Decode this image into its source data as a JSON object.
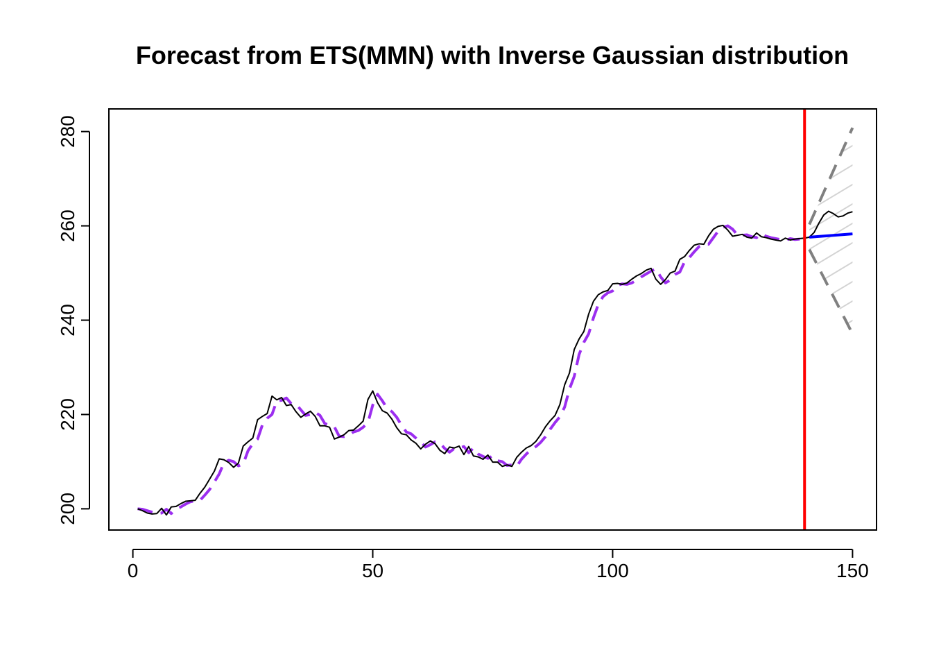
{
  "chart_data": {
    "type": "line",
    "title": "Forecast from ETS(MMN) with Inverse Gaussian distribution",
    "xlabel": "",
    "ylabel": "",
    "xlim": [
      -5,
      155
    ],
    "ylim": [
      195.5,
      284.8
    ],
    "x_ticks": [
      0,
      50,
      100,
      150
    ],
    "y_ticks": [
      200,
      220,
      240,
      260,
      280
    ],
    "grid": false,
    "holdout_start": 140,
    "series": [
      {
        "role": "actuals",
        "color": "#000000",
        "style": "solid",
        "x_start": 1,
        "values": [
          200.0,
          199.6,
          199.1,
          198.9,
          199.0,
          200.1,
          198.7,
          200.4,
          200.5,
          201.1,
          201.6,
          201.7,
          201.8,
          203.3,
          204.6,
          206.3,
          208.0,
          210.6,
          210.4,
          209.8,
          208.8,
          209.7,
          213.3,
          214.2,
          215.0,
          218.9,
          219.6,
          220.2,
          223.9,
          223.1,
          223.6,
          221.9,
          222.1,
          220.6,
          219.4,
          220.1,
          220.7,
          219.6,
          217.6,
          217.6,
          217.3,
          214.8,
          215.2,
          215.7,
          216.6,
          216.7,
          217.6,
          218.6,
          223.2,
          225.0,
          222.5,
          220.8,
          220.3,
          219.0,
          217.2,
          215.9,
          215.7,
          214.6,
          213.9,
          212.7,
          213.7,
          214.4,
          213.8,
          212.4,
          211.7,
          213.1,
          212.9,
          213.3,
          211.5,
          213.2,
          211.2,
          211.0,
          210.5,
          211.4,
          209.9,
          209.9,
          209.0,
          209.3,
          209.0,
          210.9,
          212.0,
          212.9,
          213.4,
          214.3,
          215.7,
          217.4,
          218.7,
          219.8,
          222.1,
          226.3,
          228.8,
          233.8,
          236.0,
          237.6,
          241.3,
          244.0,
          245.4,
          246.0,
          246.3,
          247.7,
          247.8,
          247.6,
          247.9,
          248.7,
          249.4,
          249.9,
          250.6,
          251.0,
          248.7,
          247.6,
          248.6,
          250.0,
          250.4,
          252.9,
          253.5,
          254.8,
          255.9,
          256.2,
          256.1,
          257.9,
          259.3,
          259.9,
          260.1,
          259.1,
          257.8,
          258.0,
          258.2,
          257.6,
          257.4,
          258.5,
          257.7,
          257.5,
          257.2,
          257.0,
          256.8,
          257.4,
          257.0,
          257.2,
          257.3,
          257.4,
          257.6,
          258.6,
          260.6,
          262.3,
          263.1,
          262.6,
          261.9,
          262.1,
          262.7,
          263.0
        ]
      },
      {
        "role": "fitted",
        "color": "#9c2ef0",
        "style": "dashed",
        "x_start": 1,
        "values": [
          200.0,
          199.9,
          199.6,
          199.3,
          199.0,
          199.1,
          199.9,
          199.0,
          199.9,
          200.4,
          201.0,
          201.5,
          201.7,
          201.8,
          202.9,
          204.1,
          205.7,
          207.4,
          209.8,
          210.3,
          210.0,
          209.1,
          209.5,
          212.3,
          213.8,
          214.8,
          217.8,
          219.2,
          220.0,
          222.9,
          223.0,
          223.5,
          222.3,
          222.2,
          221.0,
          219.8,
          220.0,
          220.5,
          219.8,
          218.1,
          217.7,
          217.4,
          215.4,
          215.3,
          215.6,
          216.3,
          216.6,
          217.3,
          218.3,
          222.0,
          224.3,
          222.9,
          221.3,
          220.6,
          219.4,
          217.7,
          216.3,
          215.9,
          215.0,
          214.2,
          213.1,
          213.6,
          214.2,
          213.9,
          212.8,
          212.0,
          212.8,
          212.9,
          213.2,
          211.9,
          212.9,
          211.6,
          211.1,
          210.7,
          211.2,
          210.2,
          210.0,
          209.2,
          209.3,
          209.0,
          210.5,
          211.6,
          212.6,
          213.2,
          214.1,
          215.3,
          216.9,
          218.3,
          219.5,
          221.6,
          225.4,
          228.1,
          232.7,
          235.3,
          237.1,
          240.5,
          243.3,
          245.0,
          245.8,
          246.2,
          247.4,
          247.7,
          247.6,
          247.9,
          248.5,
          249.2,
          249.8,
          250.4,
          250.9,
          249.2,
          247.9,
          248.5,
          249.7,
          250.2,
          252.4,
          253.3,
          254.5,
          255.6,
          256.1,
          256.1,
          257.5,
          258.9,
          259.7,
          260.0,
          259.3,
          258.1,
          258.0,
          258.1,
          257.7,
          257.5,
          258.3,
          257.8,
          257.5,
          257.3,
          257.1,
          256.9,
          257.3,
          257.1,
          257.2
        ]
      },
      {
        "role": "point_forecast",
        "color": "#0000ff",
        "style": "solid",
        "x": [
          141,
          150
        ],
        "values": [
          257.6,
          258.3
        ]
      },
      {
        "role": "upper_bound",
        "color": "#808080",
        "style": "dashed",
        "x": [
          141,
          150
        ],
        "values": [
          260.3,
          280.8
        ]
      },
      {
        "role": "lower_bound",
        "color": "#808080",
        "style": "dashed",
        "x": [
          141,
          150
        ],
        "values": [
          255.0,
          237.1
        ]
      }
    ],
    "colors": {
      "actuals": "#000000",
      "fitted": "#9c2ef0",
      "forecast": "#0000ff",
      "bounds": "#808080",
      "holdout_line": "#ff0000",
      "interval_hatch": "#d3d3d3"
    }
  }
}
